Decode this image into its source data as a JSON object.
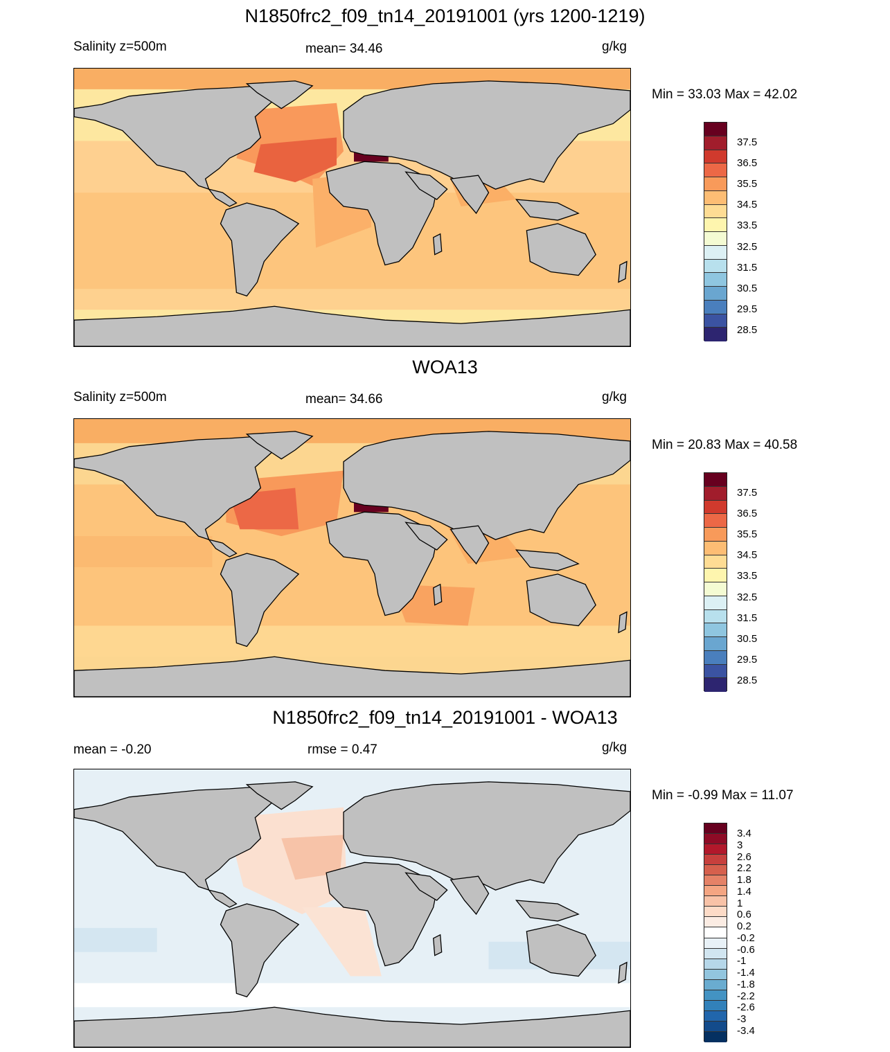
{
  "panels": [
    {
      "title": "N1850frc2_f09_tn14_20191001 (yrs 1200-1219)",
      "left_label": "Salinity z=500m",
      "center_label": "mean=  34.46",
      "units": "g/kg",
      "minmax": "Min =  33.03 Max =  42.02",
      "colorbar_labels": [
        "37.5",
        "36.5",
        "35.5",
        "34.5",
        "33.5",
        "32.5",
        "31.5",
        "30.5",
        "29.5",
        "28.5"
      ],
      "ocean_color": "#fde7a0"
    },
    {
      "title": "WOA13",
      "left_label": "Salinity z=500m",
      "center_label": "mean=  34.66",
      "units": "g/kg",
      "minmax": "Min =  20.83 Max =  40.58",
      "colorbar_labels": [
        "37.5",
        "36.5",
        "35.5",
        "34.5",
        "33.5",
        "32.5",
        "31.5",
        "30.5",
        "29.5",
        "28.5"
      ],
      "ocean_color": "#fcd690"
    },
    {
      "title": "N1850frc2_f09_tn14_20191001 - WOA13",
      "left_label": "mean =  -0.20",
      "center_label": "rmse =   0.47",
      "units": "g/kg",
      "minmax": "Min =  -0.99 Max =  11.07",
      "colorbar_labels": [
        "3.4",
        "3",
        "2.6",
        "2.2",
        "1.8",
        "1.4",
        "1",
        "0.6",
        "0.2",
        "-0.2",
        "-0.6",
        "-1",
        "-1.4",
        "-1.8",
        "-2.2",
        "-2.6",
        "-3",
        "-3.4"
      ],
      "ocean_color": "#e6f0f6"
    }
  ],
  "colors": {
    "land": "#c0c0c0",
    "salinity_scale": [
      "#67001f",
      "#a11d2c",
      "#d03a2d",
      "#ec6846",
      "#f89a5a",
      "#fdbd74",
      "#fedc94",
      "#fef5ae",
      "#f4fbd3",
      "#dcf0f4",
      "#b8e0ed",
      "#8fc6e0",
      "#6aa6d0",
      "#4a7fbd",
      "#3b53a2",
      "#2d2570"
    ],
    "diff_scale": [
      "#67001f",
      "#8e0b26",
      "#b2182b",
      "#c7403d",
      "#d6604d",
      "#e58267",
      "#f4a582",
      "#f8c2a7",
      "#fddbc7",
      "#fbece3",
      "#ffffff",
      "#e8f1f7",
      "#d1e5f0",
      "#b6d7e9",
      "#92c5de",
      "#6aacd0",
      "#4393c3",
      "#3281ba",
      "#2166ac",
      "#134b8b",
      "#053061"
    ]
  }
}
